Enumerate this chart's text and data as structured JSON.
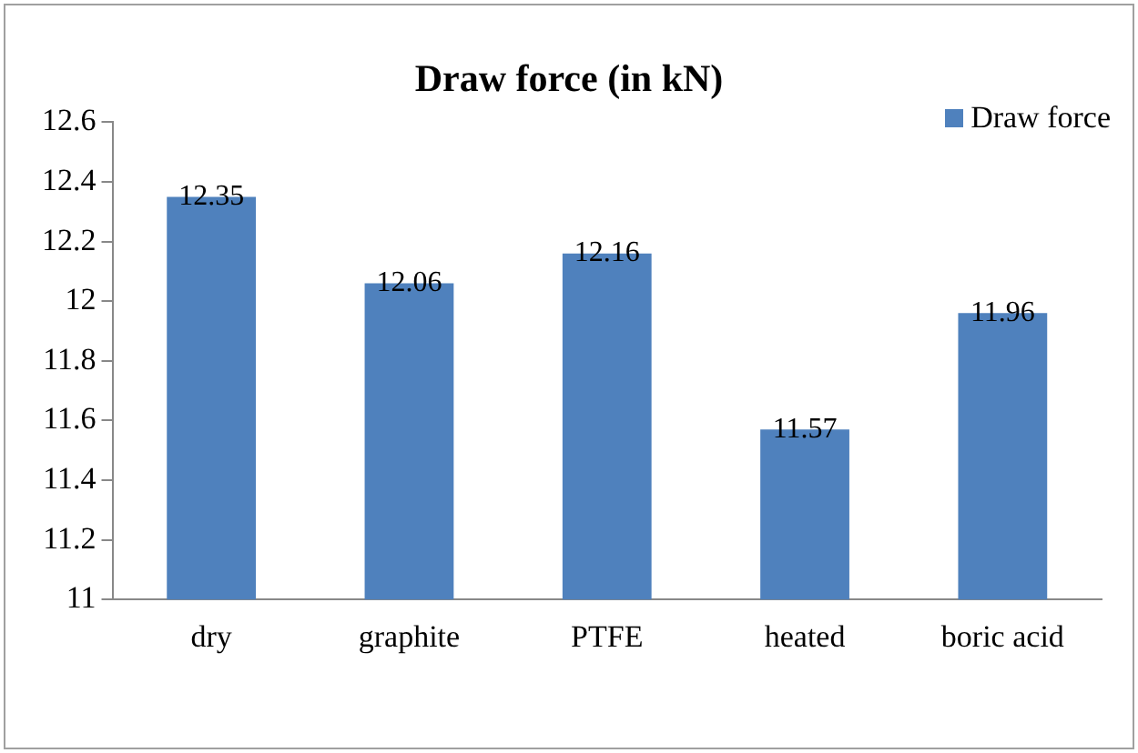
{
  "chart_data": {
    "type": "bar",
    "title": "Draw force (in kN)",
    "categories": [
      "dry",
      "graphite",
      "PTFE",
      "heated",
      "boric acid"
    ],
    "series": [
      {
        "name": "Draw force",
        "color": "#4f81bd",
        "values": [
          12.35,
          12.06,
          12.16,
          11.57,
          11.96
        ]
      }
    ],
    "ylim": [
      11,
      12.6
    ],
    "yticks": [
      11,
      11.2,
      11.4,
      11.6,
      11.8,
      12,
      12.2,
      12.4,
      12.6
    ],
    "grid": false,
    "legend": "top right",
    "data_labels": true
  }
}
